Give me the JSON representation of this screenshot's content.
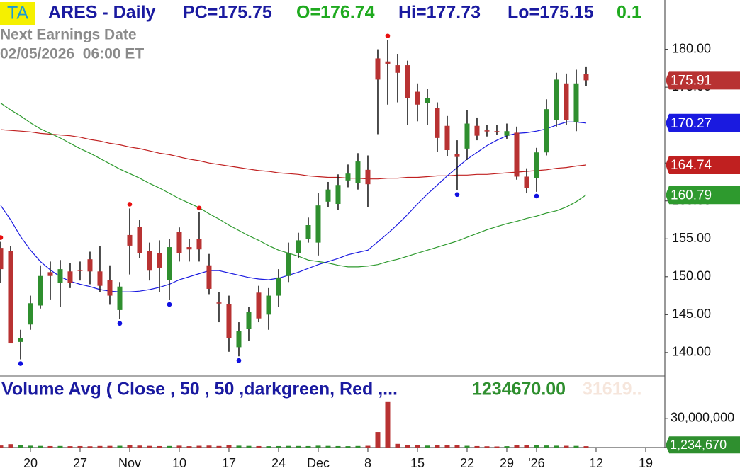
{
  "chart_data": {
    "type": "candlestick",
    "header": {
      "symbol": "TA",
      "title": "ARES - Daily",
      "pc": "PC=175.75",
      "open": "O=176.74",
      "high": "Hi=177.73",
      "low": "Lo=175.15",
      "change": "0.1"
    },
    "earnings": {
      "label": "Next Earnings Date",
      "date": "02/05/2026  06:00 ET"
    },
    "up_color": "#2f8f2f",
    "down_color": "#b83232",
    "open": [
      153.8,
      153.4,
      141.4,
      143.7,
      146.2,
      150.6,
      149.2,
      150.7,
      150.9,
      152.3,
      150.7,
      149.6,
      145.6,
      155.5,
      156.6,
      153.4,
      153.1,
      149.6,
      155.9,
      153.9,
      155.0,
      151.5,
      146.6,
      146.4,
      140.7,
      143.1,
      147.9,
      145.0,
      147.5,
      150.1,
      153.1,
      155.0,
      154.5,
      159.9,
      159.6,
      162.7,
      162.4,
      164.1,
      178.8,
      178.4,
      177.9,
      177.9,
      174.4,
      172.9,
      172.3,
      169.9,
      166.2,
      166.9,
      169.9,
      169.3,
      169.2,
      168.6,
      169.0,
      163.2,
      163.0,
      166.4,
      170.7,
      175.5,
      170.4,
      176.74
    ],
    "high": [
      154.6,
      154.0,
      143.0,
      147.5,
      151.5,
      152.0,
      152.2,
      151.8,
      152.0,
      153.3,
      154.0,
      151.5,
      149.3,
      159.0,
      157.5,
      154.5,
      154.8,
      155.0,
      156.5,
      155.0,
      158.5,
      153.0,
      148.0,
      147.5,
      144.0,
      146.0,
      148.8,
      148.5,
      151.0,
      154.5,
      155.8,
      157.8,
      161.0,
      162.5,
      163.5,
      164.8,
      166.3,
      166.0,
      180.0,
      181.2,
      179.4,
      178.5,
      175.5,
      174.8,
      173.0,
      171.2,
      168.0,
      172.0,
      171.0,
      170.0,
      170.0,
      170.2,
      169.8,
      164.3,
      167.0,
      173.4,
      176.9,
      176.8,
      177.3,
      177.73
    ],
    "low": [
      149.2,
      141.2,
      139.1,
      143.0,
      145.8,
      147.0,
      146.0,
      148.5,
      149.5,
      149.0,
      148.0,
      146.3,
      144.4,
      150.3,
      152.5,
      149.5,
      148.0,
      146.9,
      152.0,
      152.0,
      152.0,
      147.7,
      144.0,
      140.1,
      139.5,
      141.5,
      144.0,
      143.0,
      146.0,
      149.3,
      152.5,
      154.5,
      152.8,
      159.2,
      158.8,
      161.8,
      161.5,
      159.2,
      168.8,
      172.7,
      173.0,
      170.0,
      170.5,
      170.0,
      166.5,
      165.9,
      161.4,
      165.4,
      168.0,
      168.5,
      168.7,
      168.2,
      162.8,
      161.0,
      161.2,
      166.0,
      169.8,
      170.0,
      169.2,
      175.15
    ],
    "close": [
      151.0,
      141.2,
      141.9,
      146.5,
      150.1,
      150.1,
      151.0,
      149.2,
      150.8,
      150.7,
      148.8,
      147.5,
      148.7,
      154.1,
      153.1,
      150.8,
      151.2,
      153.9,
      153.1,
      153.6,
      153.6,
      148.4,
      146.5,
      141.9,
      142.8,
      145.4,
      144.5,
      147.5,
      149.9,
      153.1,
      154.8,
      156.8,
      159.4,
      161.5,
      162.1,
      163.6,
      165.2,
      162.2,
      176.0,
      178.1,
      176.9,
      173.6,
      172.7,
      173.6,
      168.3,
      166.7,
      165.8,
      170.2,
      168.6,
      169.2,
      169.1,
      169.2,
      163.2,
      161.7,
      166.4,
      172.1,
      176.0,
      170.7,
      175.5,
      175.91
    ],
    "pivot_highs": [
      0,
      13,
      20,
      39
    ],
    "pivot_lows": [
      2,
      12,
      17,
      24,
      46,
      54
    ],
    "pivot_high_color": "#e81010",
    "pivot_low_color": "#1010e0",
    "moving_averages": [
      {
        "color": "#c02020",
        "values": [
          169.4,
          169.3,
          169.2,
          169.1,
          168.9,
          168.8,
          168.7,
          168.6,
          168.4,
          168.1,
          167.9,
          167.6,
          167.4,
          167.1,
          166.9,
          166.6,
          166.3,
          166.1,
          165.8,
          165.5,
          165.3,
          165.0,
          164.8,
          164.6,
          164.4,
          164.2,
          164.0,
          163.9,
          163.7,
          163.6,
          163.5,
          163.3,
          163.2,
          163.1,
          163.1,
          163.0,
          163.0,
          162.9,
          162.9,
          163.0,
          163.0,
          163.1,
          163.1,
          163.2,
          163.3,
          163.3,
          163.4,
          163.4,
          163.5,
          163.5,
          163.6,
          163.7,
          163.8,
          163.9,
          164.0,
          164.1,
          164.3,
          164.4,
          164.6,
          164.74
        ]
      },
      {
        "color": "#2e9a2e",
        "values": [
          172.9,
          172.0,
          171.2,
          170.3,
          169.5,
          168.9,
          168.3,
          167.6,
          166.9,
          166.3,
          165.6,
          164.9,
          164.2,
          163.6,
          163.0,
          162.3,
          161.7,
          161.0,
          160.3,
          159.7,
          159.1,
          158.3,
          157.6,
          156.8,
          156.1,
          155.4,
          154.8,
          154.1,
          153.5,
          153.1,
          152.7,
          152.2,
          152.0,
          151.8,
          151.5,
          151.3,
          151.3,
          151.4,
          151.6,
          152.0,
          152.3,
          152.7,
          153.1,
          153.5,
          153.9,
          154.3,
          154.7,
          155.2,
          155.7,
          156.2,
          156.6,
          157.0,
          157.3,
          157.7,
          158.0,
          158.4,
          158.7,
          159.2,
          159.9,
          160.79
        ]
      },
      {
        "color": "#1a1ae0",
        "values": [
          159.4,
          157.5,
          155.3,
          153.5,
          152.0,
          150.9,
          150.0,
          149.4,
          149.0,
          148.7,
          148.3,
          148.1,
          148.0,
          148.0,
          148.1,
          148.3,
          148.6,
          149.0,
          149.6,
          150.0,
          150.4,
          150.8,
          150.8,
          150.5,
          150.2,
          149.9,
          149.7,
          149.6,
          149.8,
          150.2,
          150.6,
          151.1,
          151.6,
          152.0,
          152.4,
          152.9,
          153.2,
          153.5,
          154.6,
          155.7,
          156.9,
          158.2,
          159.6,
          160.9,
          162.1,
          163.3,
          164.4,
          165.5,
          166.4,
          167.3,
          168.0,
          168.6,
          168.9,
          169.0,
          169.2,
          169.5,
          170.0,
          170.4,
          170.4,
          170.27
        ]
      }
    ],
    "ylim": [
      137,
      186.5
    ],
    "yticks": [
      {
        "value": 140,
        "label": "140.00"
      },
      {
        "value": 145,
        "label": "145.00"
      },
      {
        "value": 150,
        "label": "150.00"
      },
      {
        "value": 155,
        "label": "155.00"
      },
      {
        "value": 160,
        "label": "160.00"
      },
      {
        "value": 165,
        "label": "165.00"
      },
      {
        "value": 170,
        "label": "170.00"
      },
      {
        "value": 175,
        "label": "175.00"
      },
      {
        "value": 180,
        "label": "180.00"
      }
    ],
    "xlim": [
      -0.07,
      66.93
    ],
    "xticks": [
      {
        "value": 3,
        "label": "20"
      },
      {
        "value": 8,
        "label": "27"
      },
      {
        "value": 13,
        "label": "Nov"
      },
      {
        "value": 18,
        "label": "10"
      },
      {
        "value": 23,
        "label": "17"
      },
      {
        "value": 28,
        "label": "24"
      },
      {
        "value": 32,
        "label": "Dec"
      },
      {
        "value": 37,
        "label": "8"
      },
      {
        "value": 42,
        "label": "15"
      },
      {
        "value": 47,
        "label": "22"
      },
      {
        "value": 51,
        "label": "29"
      },
      {
        "value": 54,
        "label": "'26"
      },
      {
        "value": 60,
        "label": "12"
      },
      {
        "value": 65,
        "label": "19"
      }
    ],
    "volume": {
      "title": "Volume Avg ( Close , 50 , 50 ,darkgreen, Red ,...",
      "value_text": "1234670.00",
      "faded_text": "31619..",
      "values": [
        2100000,
        3500000,
        2400000,
        1900000,
        1700000,
        1500000,
        1600000,
        1400000,
        1500000,
        1300000,
        1600000,
        1700000,
        1800000,
        2600000,
        2000000,
        1700000,
        1500000,
        1600000,
        1900000,
        1400000,
        1800000,
        2000000,
        1600000,
        2200000,
        1900000,
        1700000,
        1500000,
        1400000,
        1500000,
        1700000,
        1600000,
        1500000,
        1900000,
        1700000,
        1500000,
        1400000,
        1600000,
        1800000,
        16000000,
        46800000,
        3800000,
        2900000,
        2400000,
        2000000,
        2500000,
        2300000,
        2600000,
        1800000,
        1500000,
        1300000,
        1100000,
        1400000,
        2700000,
        2200000,
        2400000,
        2100000,
        1900000,
        1800000,
        1700000,
        1400000
      ],
      "average": 1234670,
      "average_label": "1,234,670",
      "average_color": "#2f8f2f",
      "ylim": [
        0,
        70000000
      ],
      "yticks": [
        {
          "value": 30000000,
          "label": "30,000,000"
        }
      ]
    }
  }
}
